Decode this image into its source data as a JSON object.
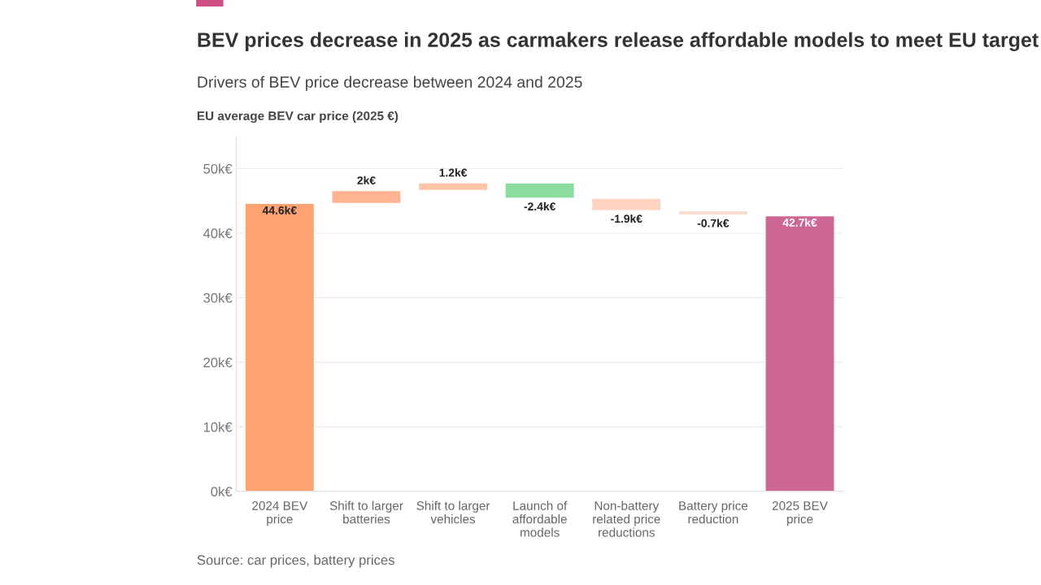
{
  "chart_data": {
    "type": "bar",
    "title": "BEV prices decrease in 2025 as carmakers release affordable models to meet EU target",
    "subtitle": "Drivers of BEV price decrease between 2024 and 2025",
    "ylabel": "EU average BEV car price (2025 €)",
    "categories": [
      "2024 BEV\nprice",
      "Shift to larger\nbatteries",
      "Shift to larger\nvehicles",
      "Launch of\naffordable\nmodels",
      "Non-battery\nrelated price\nreductions",
      "Battery price\nreduction",
      "2025 BEV\nprice"
    ],
    "values": [
      44.6,
      2,
      1.2,
      -2.4,
      -1.9,
      -0.7,
      42.7
    ],
    "base": [
      0,
      44.6,
      46.6,
      47.8,
      45.4,
      43.5,
      0
    ],
    "colors": [
      "#ffa273",
      "#ffb392",
      "#ffc5a8",
      "#8bdc9e",
      "#ffd3bf",
      "#f8ddd0",
      "#cd6595"
    ],
    "value_labels": [
      "44.6k€",
      "2k€",
      "1.2k€",
      "-2.4k€",
      "-1.9k€",
      "-0.7k€",
      "42.7k€"
    ],
    "ylim": [
      0,
      55
    ],
    "yticks": [
      {
        "value": 0,
        "label": "0k€"
      },
      {
        "value": 10,
        "label": "10k€"
      },
      {
        "value": 20,
        "label": "20k€"
      },
      {
        "value": 30,
        "label": "30k€"
      },
      {
        "value": 40,
        "label": "40k€"
      },
      {
        "value": 50,
        "label": "50k€"
      }
    ],
    "grid": "y",
    "annotations": [
      "Source: car prices, battery prices"
    ]
  }
}
